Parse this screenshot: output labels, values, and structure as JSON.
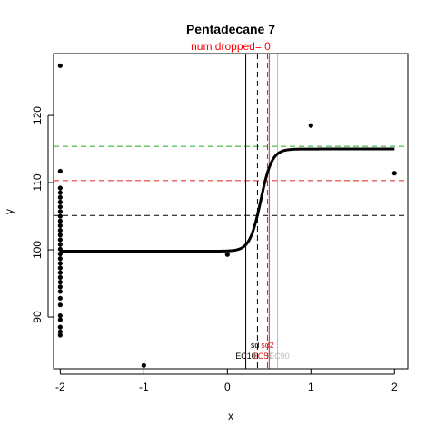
{
  "chart_data": {
    "type": "scatter",
    "title": "Pentadecane 7",
    "subtitle": "num dropped= 0",
    "xlabel": "x",
    "ylabel": "y",
    "xlim": [
      -2.08,
      2.16
    ],
    "ylim": [
      82.3,
      129.2
    ],
    "x_ticks": [
      -2,
      -1,
      0,
      1,
      2
    ],
    "y_ticks": [
      90,
      100,
      110,
      120
    ],
    "points": [
      [
        -2,
        127.4
      ],
      [
        -2,
        111.7
      ],
      [
        -2,
        109.2
      ],
      [
        -2,
        108.5
      ],
      [
        -2,
        107.8
      ],
      [
        -2,
        107.1
      ],
      [
        -2,
        106.4
      ],
      [
        -2,
        105.7
      ],
      [
        -2,
        105.0
      ],
      [
        -2,
        104.3
      ],
      [
        -2,
        103.6
      ],
      [
        -2,
        102.9
      ],
      [
        -2,
        102.2
      ],
      [
        -2,
        101.5
      ],
      [
        -2,
        100.8
      ],
      [
        -2,
        100.1
      ],
      [
        -2,
        99.4
      ],
      [
        -2,
        98.7
      ],
      [
        -2,
        98.0
      ],
      [
        -2,
        97.3
      ],
      [
        -2,
        96.6
      ],
      [
        -2,
        95.9
      ],
      [
        -2,
        95.2
      ],
      [
        -2,
        94.5
      ],
      [
        -2,
        93.8
      ],
      [
        -2,
        92.8
      ],
      [
        -2,
        91.8
      ],
      [
        -2,
        90.2
      ],
      [
        -2,
        89.6
      ],
      [
        -2,
        88.5
      ],
      [
        -2,
        87.8
      ],
      [
        -2,
        87.3
      ],
      [
        -1,
        82.8
      ],
      [
        0,
        99.3
      ],
      [
        1,
        118.5
      ],
      [
        2,
        111.4
      ]
    ],
    "fit_curve": {
      "x_start": -2,
      "x_end": 2,
      "bottom": 99.8,
      "top": 115.0,
      "midpoint": 0.4,
      "slope": 15
    },
    "hlines": [
      {
        "y": 115.4,
        "color": "#22aa22",
        "dash": "dashed"
      },
      {
        "y": 110.3,
        "color": "#dd2222",
        "dash": "dashed"
      },
      {
        "y": 105.1,
        "color": "#000000",
        "dash": "dashed"
      }
    ],
    "vlines": [
      {
        "x": 0.22,
        "color": "#000000",
        "dash": "solid"
      },
      {
        "x": 0.36,
        "color": "#000000",
        "dash": "dashed"
      },
      {
        "x": 0.48,
        "color": "#dd2222",
        "dash": "dashed"
      },
      {
        "x": 0.5,
        "color": "#dd2222",
        "dash": "solid"
      },
      {
        "x": 0.6,
        "color": "#bbbbbb",
        "dash": "solid"
      }
    ],
    "vline_labels": [
      {
        "text": "sd",
        "x": 0.33,
        "y": 85.4,
        "color": "#000000"
      },
      {
        "text": "sd2",
        "x": 0.48,
        "y": 85.4,
        "color": "#dd2222"
      },
      {
        "text": "EC10",
        "x": 0.22,
        "y": 83.8,
        "color": "#000000"
      },
      {
        "text": "EC50",
        "x": 0.42,
        "y": 83.8,
        "color": "#dd2222"
      },
      {
        "text": "EC90",
        "x": 0.62,
        "y": 83.8,
        "color": "#bbbbbb"
      }
    ],
    "grid": false,
    "colors": {
      "title": "#000000",
      "subtitle": "#ff0000",
      "points": "#000000"
    }
  }
}
